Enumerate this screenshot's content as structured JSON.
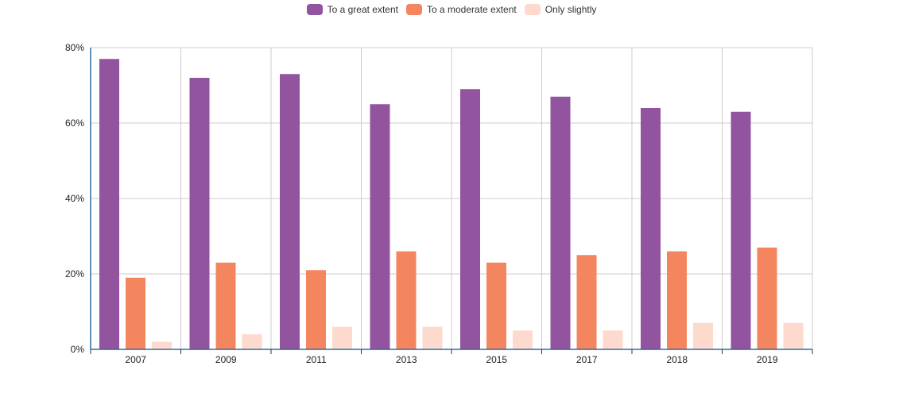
{
  "chart_data": {
    "type": "bar",
    "categories": [
      "2007",
      "2009",
      "2011",
      "2013",
      "2015",
      "2017",
      "2018",
      "2019"
    ],
    "series": [
      {
        "name": "To a great extent",
        "color": "#92539F",
        "values": [
          77,
          72,
          73,
          65,
          69,
          67,
          64,
          63
        ]
      },
      {
        "name": "To a moderate extent",
        "color": "#F4865F",
        "values": [
          19,
          23,
          21,
          26,
          23,
          25,
          26,
          27
        ]
      },
      {
        "name": "Only slightly",
        "color": "#FDDACD",
        "values": [
          2,
          4,
          6,
          6,
          5,
          5,
          7,
          7
        ]
      }
    ],
    "ylim": [
      0,
      80
    ],
    "yticks": [
      "0%",
      "20%",
      "40%",
      "60%",
      "80%"
    ],
    "ytick_values": [
      0,
      20,
      40,
      60,
      80
    ],
    "grid": true,
    "legend_position": "top-center",
    "axis_color": "#2E6DA4",
    "grid_color": "#CCCCCC"
  }
}
